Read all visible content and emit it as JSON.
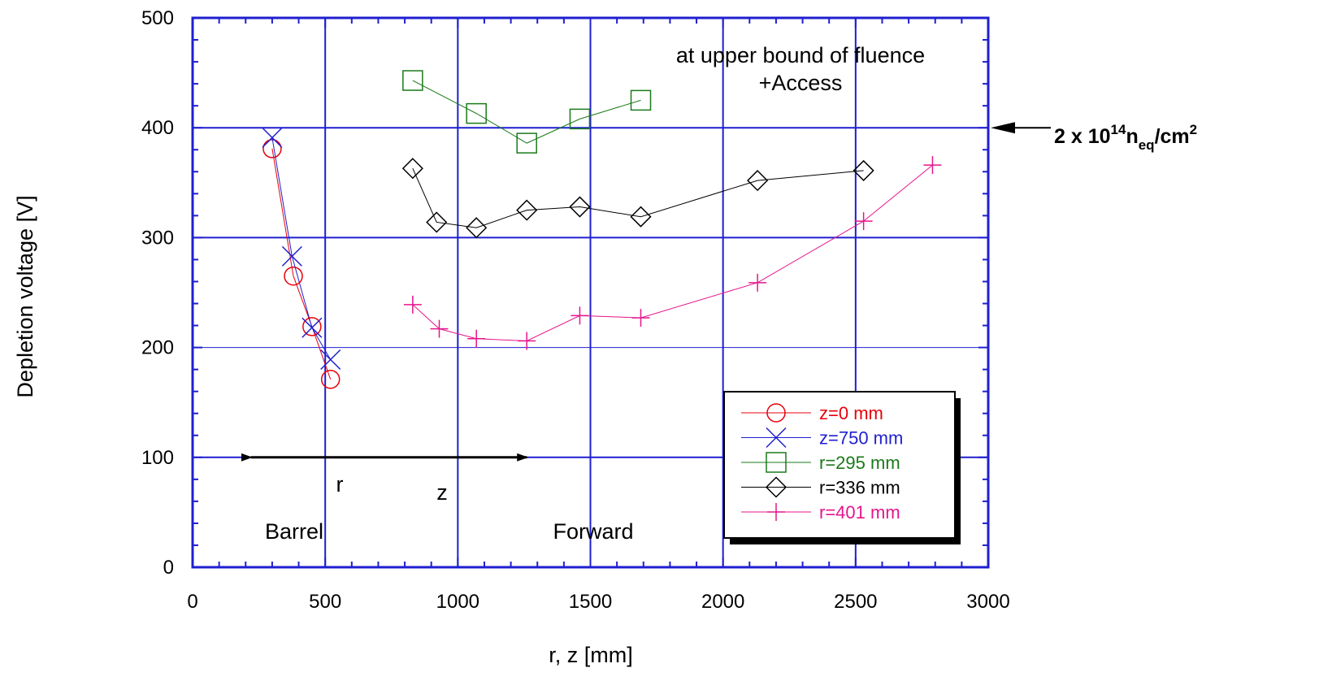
{
  "chart_data": {
    "type": "scatter",
    "xlabel": "r, z [mm]",
    "ylabel": "Depletion voltage [V]",
    "xlim": [
      0,
      3000
    ],
    "ylim": [
      0,
      500
    ],
    "xticks": [
      "0",
      "500",
      "1000",
      "1500",
      "2000",
      "2500",
      "3000"
    ],
    "yticks": [
      "0",
      "100",
      "200",
      "300",
      "400",
      "500"
    ],
    "grid": true,
    "legend_position": "lower-right",
    "series": [
      {
        "name": "z=0 mm",
        "color": "#e8000b",
        "marker": "circle",
        "x": [
          300,
          380,
          450,
          520
        ],
        "y": [
          381,
          265,
          219,
          171
        ]
      },
      {
        "name": "z=750 mm",
        "color": "#1f1fd0",
        "marker": "x",
        "x": [
          300,
          375,
          450,
          520
        ],
        "y": [
          391,
          283,
          218,
          189
        ]
      },
      {
        "name": "r=295 mm",
        "color": "#1a7a1a",
        "marker": "square",
        "x": [
          830,
          1070,
          1260,
          1460,
          1690
        ],
        "y": [
          443,
          413,
          386,
          408,
          425
        ]
      },
      {
        "name": "r=336 mm",
        "color": "#000000",
        "marker": "diamond",
        "x": [
          830,
          920,
          1070,
          1260,
          1460,
          1690,
          2130,
          2530
        ],
        "y": [
          363,
          314,
          309,
          325,
          328,
          319,
          352,
          361
        ]
      },
      {
        "name": "r=401 mm",
        "color": "#e6158c",
        "marker": "plus",
        "x": [
          830,
          930,
          1070,
          1260,
          1460,
          1690,
          2130,
          2530,
          2790
        ],
        "y": [
          239,
          217,
          208,
          206,
          229,
          227,
          259,
          315,
          366
        ]
      }
    ],
    "annotations": {
      "fluence_note_line1": "at upper bound of fluence",
      "fluence_note_line2": "+Access",
      "r_label": "r",
      "z_label": "z",
      "barrel_label": "Barrel",
      "forward_label": "Forward",
      "fluence_value": "2 x 10",
      "fluence_exp": "14",
      "fluence_sub_n": "n",
      "fluence_sub": "eq",
      "fluence_unit": "/cm",
      "fluence_unit_exp": "2",
      "fluence_arrow_y": 400,
      "range_arrow": {
        "x_start": 220,
        "x_end": 1260,
        "y": 100
      }
    }
  }
}
